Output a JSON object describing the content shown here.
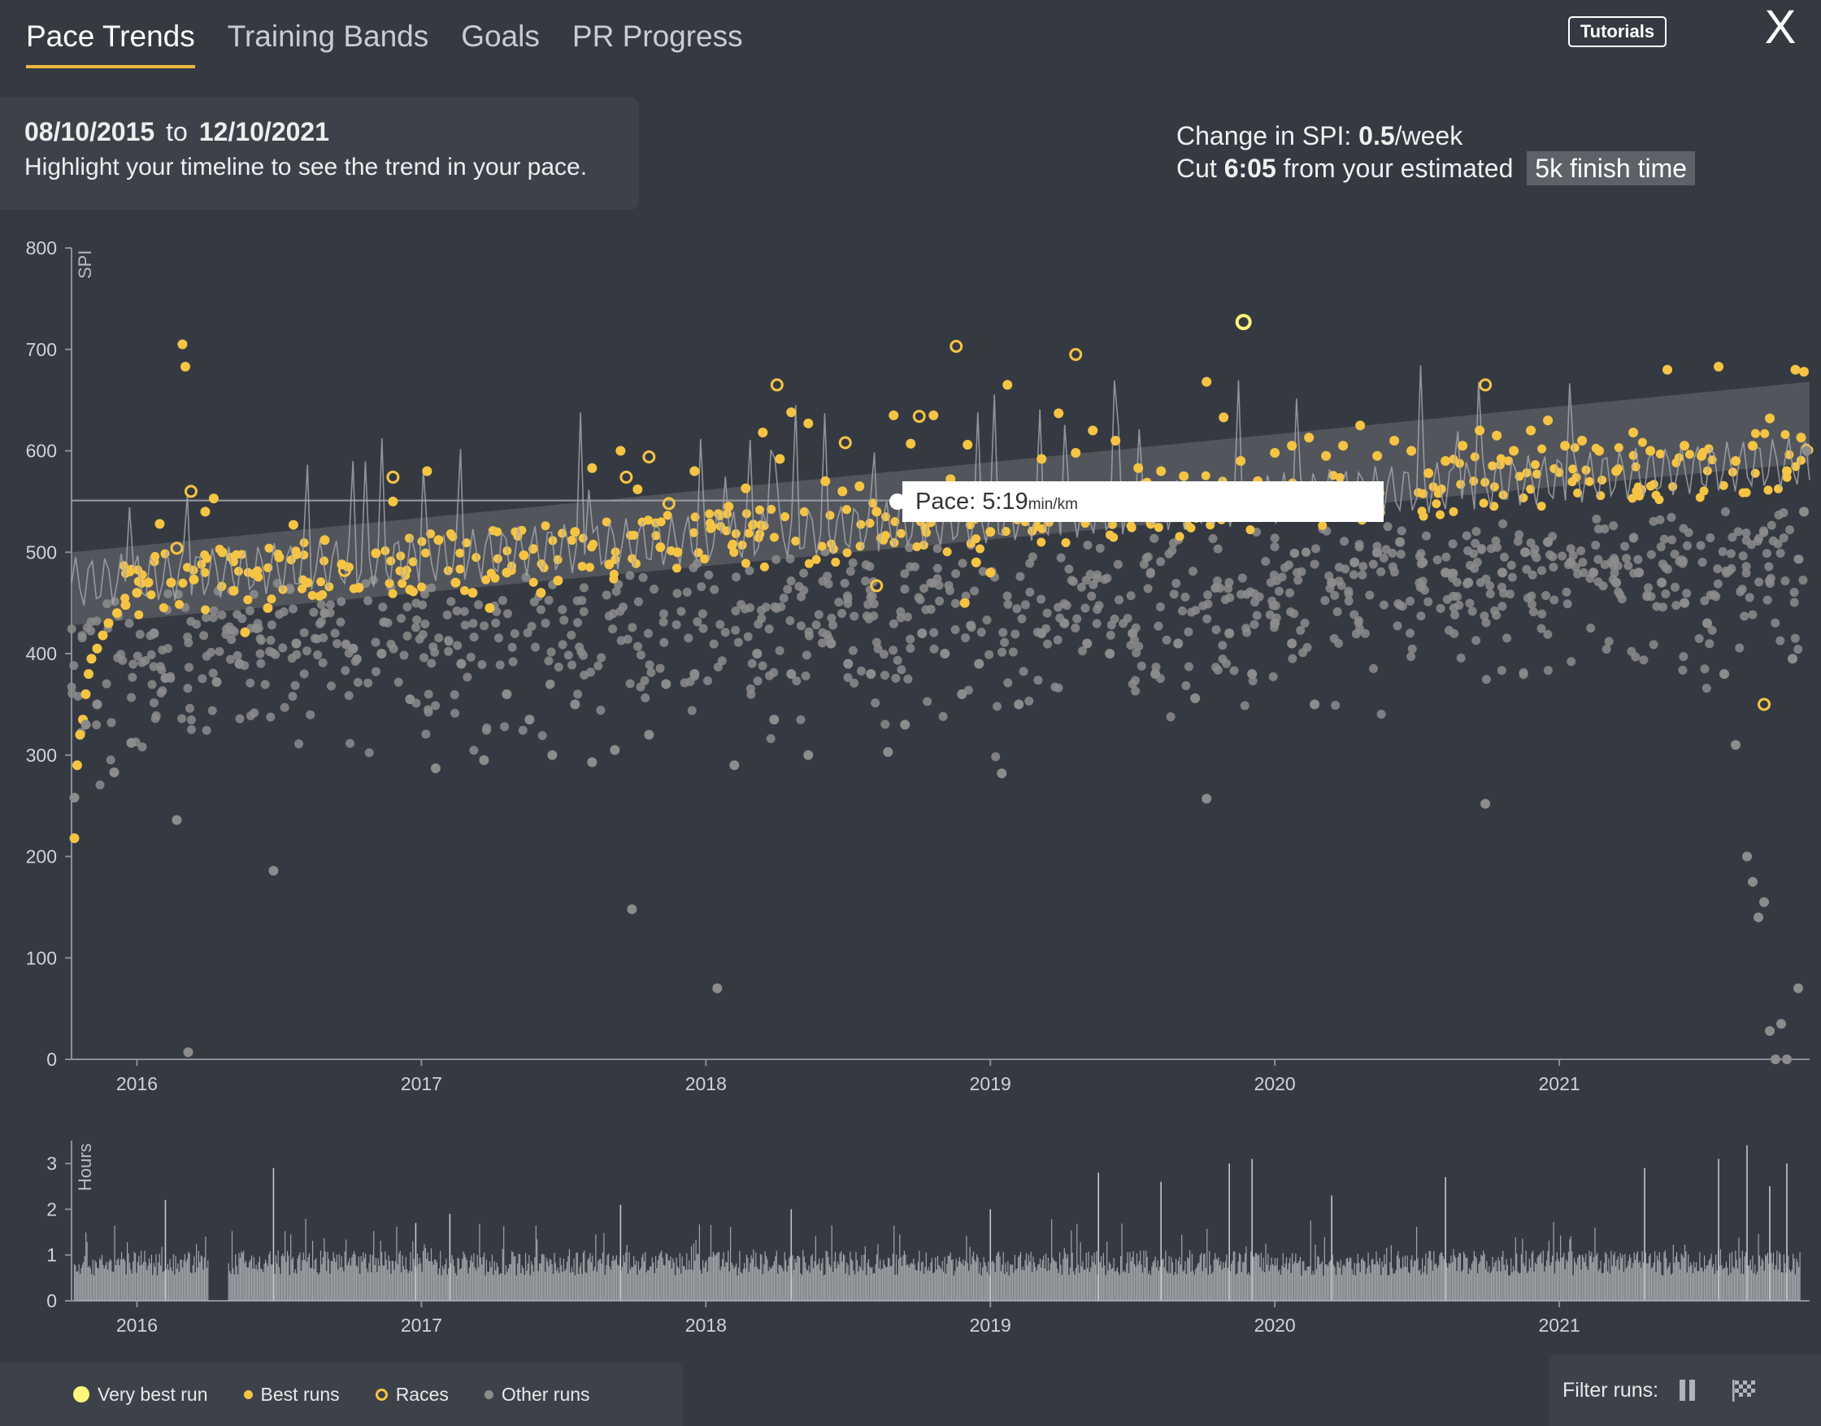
{
  "tabs": [
    {
      "label": "Pace Trends",
      "active": true
    },
    {
      "label": "Training Bands",
      "active": false
    },
    {
      "label": "Goals",
      "active": false
    },
    {
      "label": "PR Progress",
      "active": false
    }
  ],
  "header": {
    "tutorials_label": "Tutorials",
    "close_label": "X",
    "close_icon": "close-icon"
  },
  "date_panel": {
    "start": "08/10/2015",
    "to": "to",
    "end": "12/10/2021",
    "hint": "Highlight your timeline to see the trend in your pace."
  },
  "summary": {
    "spi_prefix": "Change in SPI:",
    "spi_value": "0.5",
    "spi_unit": "/week",
    "cut_prefix": "Cut",
    "cut_value": "6:05",
    "cut_mid": "from your estimated",
    "finish_label": "5k finish time"
  },
  "tooltip": {
    "label": "Pace:",
    "value": "5:19",
    "unit": "min/km"
  },
  "colors": {
    "background": "#353a42",
    "very_best": "#fff87a",
    "best": "#f6c444",
    "race": "#f6c444",
    "other": "#8c8c8c",
    "trend_band": "#6a6d72"
  },
  "legend": {
    "very_best": "Very best run",
    "best": "Best runs",
    "races": "Races",
    "other": "Other runs"
  },
  "filter": {
    "label": "Filter runs:",
    "pause_icon": "pause-icon",
    "flag_icon": "checkered-flag-icon"
  },
  "chart_data": [
    {
      "type": "scatter",
      "title": "",
      "ylabel": "SPI",
      "ylim": [
        0,
        800
      ],
      "yticks": [
        0,
        100,
        200,
        300,
        400,
        500,
        600,
        700,
        800
      ],
      "xlim": [
        2015.77,
        2021.88
      ],
      "xticks": [
        "2016",
        "2017",
        "2018",
        "2019",
        "2020",
        "2021"
      ],
      "grid": false,
      "legend": "bottom-left",
      "trend_band": {
        "x": [
          2015.77,
          2021.88
        ],
        "lower": [
          428,
          588
        ],
        "upper": [
          500,
          668
        ]
      },
      "reference_line": {
        "y": 551,
        "label": "Pace: 5:19 min/km"
      },
      "series": [
        {
          "name": "Very best run",
          "style": "very_best",
          "points": [
            [
              2019.89,
              727
            ]
          ]
        },
        {
          "name": "Races",
          "style": "race",
          "points": [
            [
              2016.14,
              504
            ],
            [
              2016.19,
              560
            ],
            [
              2016.73,
              482
            ],
            [
              2016.9,
              574
            ],
            [
              2017.72,
              574
            ],
            [
              2017.8,
              594
            ],
            [
              2017.87,
              548
            ],
            [
              2018.25,
              665
            ],
            [
              2018.49,
              608
            ],
            [
              2018.75,
              634
            ],
            [
              2018.88,
              703
            ],
            [
              2019.3,
              695
            ],
            [
              2020.74,
              665
            ],
            [
              2021.72,
              350
            ],
            [
              2018.6,
              467
            ]
          ]
        },
        {
          "name": "Best runs",
          "style": "best",
          "points": [
            [
              2015.78,
              218
            ],
            [
              2015.79,
              290
            ],
            [
              2015.8,
              320
            ],
            [
              2015.81,
              335
            ],
            [
              2015.82,
              360
            ],
            [
              2015.83,
              380
            ],
            [
              2015.84,
              395
            ],
            [
              2015.86,
              405
            ],
            [
              2015.88,
              418
            ],
            [
              2015.9,
              430
            ],
            [
              2015.93,
              440
            ],
            [
              2015.96,
              448
            ],
            [
              2016.0,
              460
            ],
            [
              2016.04,
              470
            ],
            [
              2016.08,
              528
            ],
            [
              2016.12,
              470
            ],
            [
              2016.16,
              705
            ],
            [
              2016.17,
              683
            ],
            [
              2016.2,
              473
            ],
            [
              2016.24,
              540
            ],
            [
              2016.27,
              553
            ],
            [
              2016.3,
              500
            ],
            [
              2016.34,
              462
            ],
            [
              2016.38,
              421
            ],
            [
              2016.42,
              480
            ],
            [
              2016.46,
              445
            ],
            [
              2016.5,
              495
            ],
            [
              2016.55,
              527
            ],
            [
              2016.6,
              470
            ],
            [
              2016.66,
              512
            ],
            [
              2016.72,
              488
            ],
            [
              2016.78,
              465
            ],
            [
              2016.84,
              499
            ],
            [
              2016.9,
              550
            ],
            [
              2016.96,
              463
            ],
            [
              2017.02,
              580
            ],
            [
              2017.06,
              512
            ],
            [
              2017.12,
              470
            ],
            [
              2017.18,
              460
            ],
            [
              2017.24,
              445
            ],
            [
              2017.3,
              480
            ],
            [
              2017.36,
              497
            ],
            [
              2017.42,
              460
            ],
            [
              2017.48,
              472
            ],
            [
              2017.54,
              520
            ],
            [
              2017.6,
              583
            ],
            [
              2017.66,
              488
            ],
            [
              2017.7,
              600
            ],
            [
              2017.76,
              562
            ],
            [
              2017.84,
              505
            ],
            [
              2017.9,
              500
            ],
            [
              2017.96,
              580
            ],
            [
              2018.02,
              525
            ],
            [
              2018.08,
              545
            ],
            [
              2018.14,
              563
            ],
            [
              2018.2,
              618
            ],
            [
              2018.26,
              592
            ],
            [
              2018.3,
              638
            ],
            [
              2018.36,
              627
            ],
            [
              2018.42,
              570
            ],
            [
              2018.48,
              560
            ],
            [
              2018.54,
              565
            ],
            [
              2018.6,
              540
            ],
            [
              2018.66,
              635
            ],
            [
              2018.72,
              607
            ],
            [
              2018.8,
              635
            ],
            [
              2018.86,
              572
            ],
            [
              2018.92,
              606
            ],
            [
              2019.0,
              520
            ],
            [
              2019.06,
              665
            ],
            [
              2019.12,
              553
            ],
            [
              2019.18,
              592
            ],
            [
              2019.24,
              637
            ],
            [
              2019.3,
              598
            ],
            [
              2019.36,
              620
            ],
            [
              2019.44,
              610
            ],
            [
              2019.52,
              583
            ],
            [
              2019.6,
              580
            ],
            [
              2019.68,
              575
            ],
            [
              2019.76,
              668
            ],
            [
              2019.82,
              633
            ],
            [
              2019.88,
              590
            ],
            [
              2019.94,
              570
            ],
            [
              2020.0,
              598
            ],
            [
              2020.06,
              605
            ],
            [
              2020.12,
              613
            ],
            [
              2020.18,
              595
            ],
            [
              2020.24,
              605
            ],
            [
              2020.3,
              625
            ],
            [
              2020.36,
              595
            ],
            [
              2020.42,
              610
            ],
            [
              2020.48,
              600
            ],
            [
              2020.54,
              578
            ],
            [
              2020.6,
              590
            ],
            [
              2020.66,
              605
            ],
            [
              2020.72,
              620
            ],
            [
              2020.78,
              615
            ],
            [
              2020.84,
              600
            ],
            [
              2020.9,
              620
            ],
            [
              2020.96,
              630
            ],
            [
              2021.02,
              605
            ],
            [
              2021.08,
              610
            ],
            [
              2021.14,
              600
            ],
            [
              2021.2,
              580
            ],
            [
              2021.26,
              618
            ],
            [
              2021.32,
              600
            ],
            [
              2021.38,
              680
            ],
            [
              2021.44,
              605
            ],
            [
              2021.5,
              595
            ],
            [
              2021.56,
              683
            ],
            [
              2021.62,
              590
            ],
            [
              2021.68,
              605
            ],
            [
              2021.74,
              632
            ],
            [
              2021.8,
              580
            ],
            [
              2021.83,
              680
            ],
            [
              2021.86,
              678
            ],
            [
              2021.85,
              613
            ],
            [
              2018.91,
              450
            ],
            [
              2019.0,
              480
            ],
            [
              2018.95,
              490
            ]
          ]
        },
        {
          "name": "Other runs",
          "style": "other",
          "points": [
            [
              2015.78,
              258
            ],
            [
              2015.82,
              330
            ],
            [
              2015.86,
              350
            ],
            [
              2015.92,
              283
            ],
            [
              2015.98,
              312
            ],
            [
              2016.06,
              420
            ],
            [
              2016.1,
              376
            ],
            [
              2016.14,
              236
            ],
            [
              2016.18,
              7
            ],
            [
              2016.28,
              372
            ],
            [
              2016.36,
              390
            ],
            [
              2016.42,
              425
            ],
            [
              2016.48,
              186
            ],
            [
              2016.56,
              410
            ],
            [
              2016.66,
              440
            ],
            [
              2016.76,
              405
            ],
            [
              2016.86,
              400
            ],
            [
              2016.96,
              355
            ],
            [
              2017.05,
              287
            ],
            [
              2017.14,
              390
            ],
            [
              2017.22,
              295
            ],
            [
              2017.3,
              360
            ],
            [
              2017.38,
              335
            ],
            [
              2017.46,
              300
            ],
            [
              2017.54,
              350
            ],
            [
              2017.6,
              293
            ],
            [
              2017.68,
              305
            ],
            [
              2017.74,
              148
            ],
            [
              2017.8,
              320
            ],
            [
              2017.86,
              370
            ],
            [
              2017.96,
              380
            ],
            [
              2018.04,
              70
            ],
            [
              2018.1,
              290
            ],
            [
              2018.18,
              400
            ],
            [
              2018.24,
              335
            ],
            [
              2018.3,
              380
            ],
            [
              2018.36,
              300
            ],
            [
              2018.44,
              410
            ],
            [
              2018.5,
              390
            ],
            [
              2018.58,
              380
            ],
            [
              2018.64,
              303
            ],
            [
              2018.7,
              330
            ],
            [
              2018.76,
              420
            ],
            [
              2018.84,
              400
            ],
            [
              2018.9,
              360
            ],
            [
              2018.96,
              390
            ],
            [
              2019.04,
              282
            ],
            [
              2019.1,
              350
            ],
            [
              2019.18,
              420
            ],
            [
              2019.26,
              430
            ],
            [
              2019.34,
              410
            ],
            [
              2019.42,
              400
            ],
            [
              2019.5,
              420
            ],
            [
              2019.58,
              380
            ],
            [
              2019.66,
              410
            ],
            [
              2019.72,
              356
            ],
            [
              2019.76,
              257
            ],
            [
              2019.84,
              420
            ],
            [
              2019.92,
              380
            ],
            [
              2020.0,
              430
            ],
            [
              2020.06,
              410
            ],
            [
              2020.14,
              350
            ],
            [
              2020.2,
              470
            ],
            [
              2020.28,
              490
            ],
            [
              2020.36,
              500
            ],
            [
              2020.44,
              510
            ],
            [
              2020.52,
              490
            ],
            [
              2020.6,
              480
            ],
            [
              2020.68,
              470
            ],
            [
              2020.74,
              252
            ],
            [
              2020.8,
              480
            ],
            [
              2020.88,
              500
            ],
            [
              2020.96,
              510
            ],
            [
              2021.04,
              490
            ],
            [
              2021.12,
              480
            ],
            [
              2021.2,
              470
            ],
            [
              2021.28,
              480
            ],
            [
              2021.36,
              470
            ],
            [
              2021.44,
              450
            ],
            [
              2021.52,
              430
            ],
            [
              2021.58,
              380
            ],
            [
              2021.62,
              310
            ],
            [
              2021.66,
              200
            ],
            [
              2021.68,
              175
            ],
            [
              2021.7,
              140
            ],
            [
              2021.72,
              155
            ],
            [
              2021.74,
              28
            ],
            [
              2021.76,
              0
            ],
            [
              2021.78,
              35
            ],
            [
              2021.8,
              0
            ],
            [
              2021.82,
              395
            ],
            [
              2021.84,
              70
            ],
            [
              2021.86,
              540
            ],
            [
              2021.87,
              600
            ]
          ]
        }
      ]
    },
    {
      "type": "bar",
      "ylabel": "Hours",
      "ylim": [
        0,
        3.5
      ],
      "yticks": [
        0,
        1,
        2,
        3
      ],
      "xlim": [
        2015.77,
        2021.88
      ],
      "xticks": [
        "2016",
        "2017",
        "2018",
        "2019",
        "2020",
        "2021"
      ],
      "peaks": [
        [
          2016.1,
          2.2
        ],
        [
          2016.48,
          2.9
        ],
        [
          2016.98,
          1.7
        ],
        [
          2017.1,
          1.9
        ],
        [
          2017.7,
          2.1
        ],
        [
          2018.3,
          2.0
        ],
        [
          2019.0,
          2.0
        ],
        [
          2019.38,
          2.8
        ],
        [
          2019.6,
          2.6
        ],
        [
          2019.84,
          3.0
        ],
        [
          2019.92,
          3.1
        ],
        [
          2020.2,
          2.3
        ],
        [
          2020.6,
          2.7
        ],
        [
          2021.3,
          2.9
        ],
        [
          2021.56,
          3.1
        ],
        [
          2021.66,
          3.4
        ],
        [
          2021.74,
          2.5
        ],
        [
          2021.8,
          3.0
        ]
      ]
    }
  ]
}
